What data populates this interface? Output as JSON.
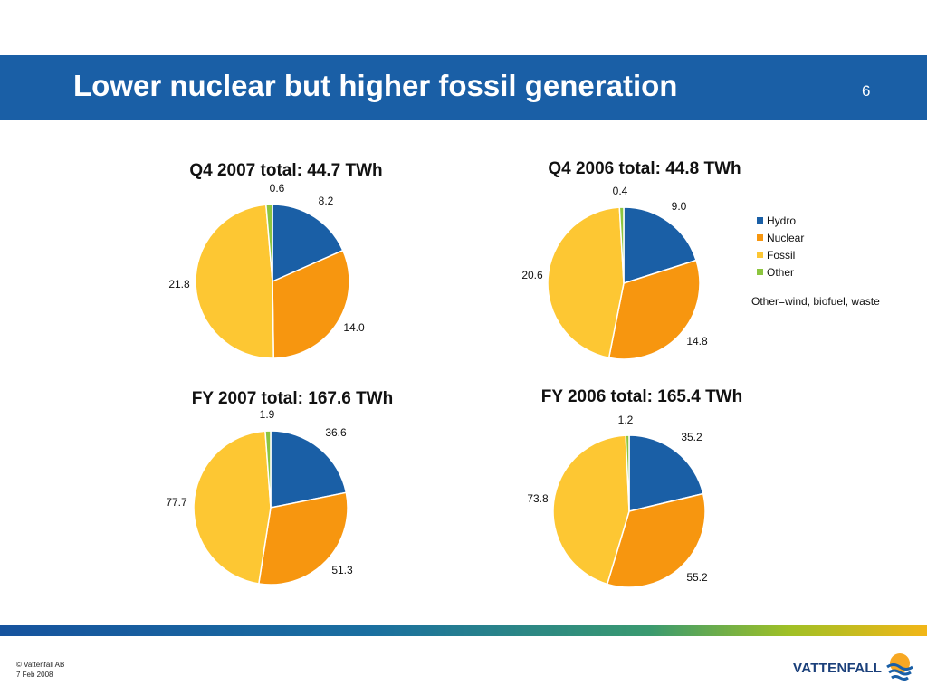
{
  "slide": {
    "title": "Lower nuclear but higher fossil generation",
    "number": "6"
  },
  "colors": {
    "Hydro": "#1a5fa6",
    "Nuclear": "#f7960f",
    "Fossil": "#fdc733",
    "Other": "#8cc53f"
  },
  "legend": {
    "items": [
      "Hydro",
      "Nuclear",
      "Fossil",
      "Other"
    ],
    "note": "Other=wind, biofuel, waste"
  },
  "chart_data": [
    {
      "type": "pie",
      "title": "Q4 2007 total: 44.7 TWh",
      "categories": [
        "Hydro",
        "Nuclear",
        "Fossil",
        "Other"
      ],
      "values": [
        8.2,
        14.0,
        21.8,
        0.6
      ],
      "labels": [
        "8.2",
        "14.0",
        "21.8",
        "0.6"
      ]
    },
    {
      "type": "pie",
      "title": "Q4 2006 total: 44.8 TWh",
      "categories": [
        "Hydro",
        "Nuclear",
        "Fossil",
        "Other"
      ],
      "values": [
        9.0,
        14.8,
        20.6,
        0.4
      ],
      "labels": [
        "9.0",
        "14.8",
        "20.6",
        "0.4"
      ]
    },
    {
      "type": "pie",
      "title": "FY 2007 total: 167.6 TWh",
      "categories": [
        "Hydro",
        "Nuclear",
        "Fossil",
        "Other"
      ],
      "values": [
        36.6,
        51.3,
        77.7,
        1.9
      ],
      "labels": [
        "36.6",
        "51.3",
        "77.7",
        "1.9"
      ]
    },
    {
      "type": "pie",
      "title": "FY 2006 total: 165.4 TWh",
      "categories": [
        "Hydro",
        "Nuclear",
        "Fossil",
        "Other"
      ],
      "values": [
        35.2,
        55.2,
        73.8,
        1.2
      ],
      "labels": [
        "35.2",
        "55.2",
        "73.8",
        "1.2"
      ]
    }
  ],
  "footer": {
    "copyright": "© Vattenfall AB",
    "date": "7 Feb 2008",
    "logo_text": "VATTENFALL"
  }
}
